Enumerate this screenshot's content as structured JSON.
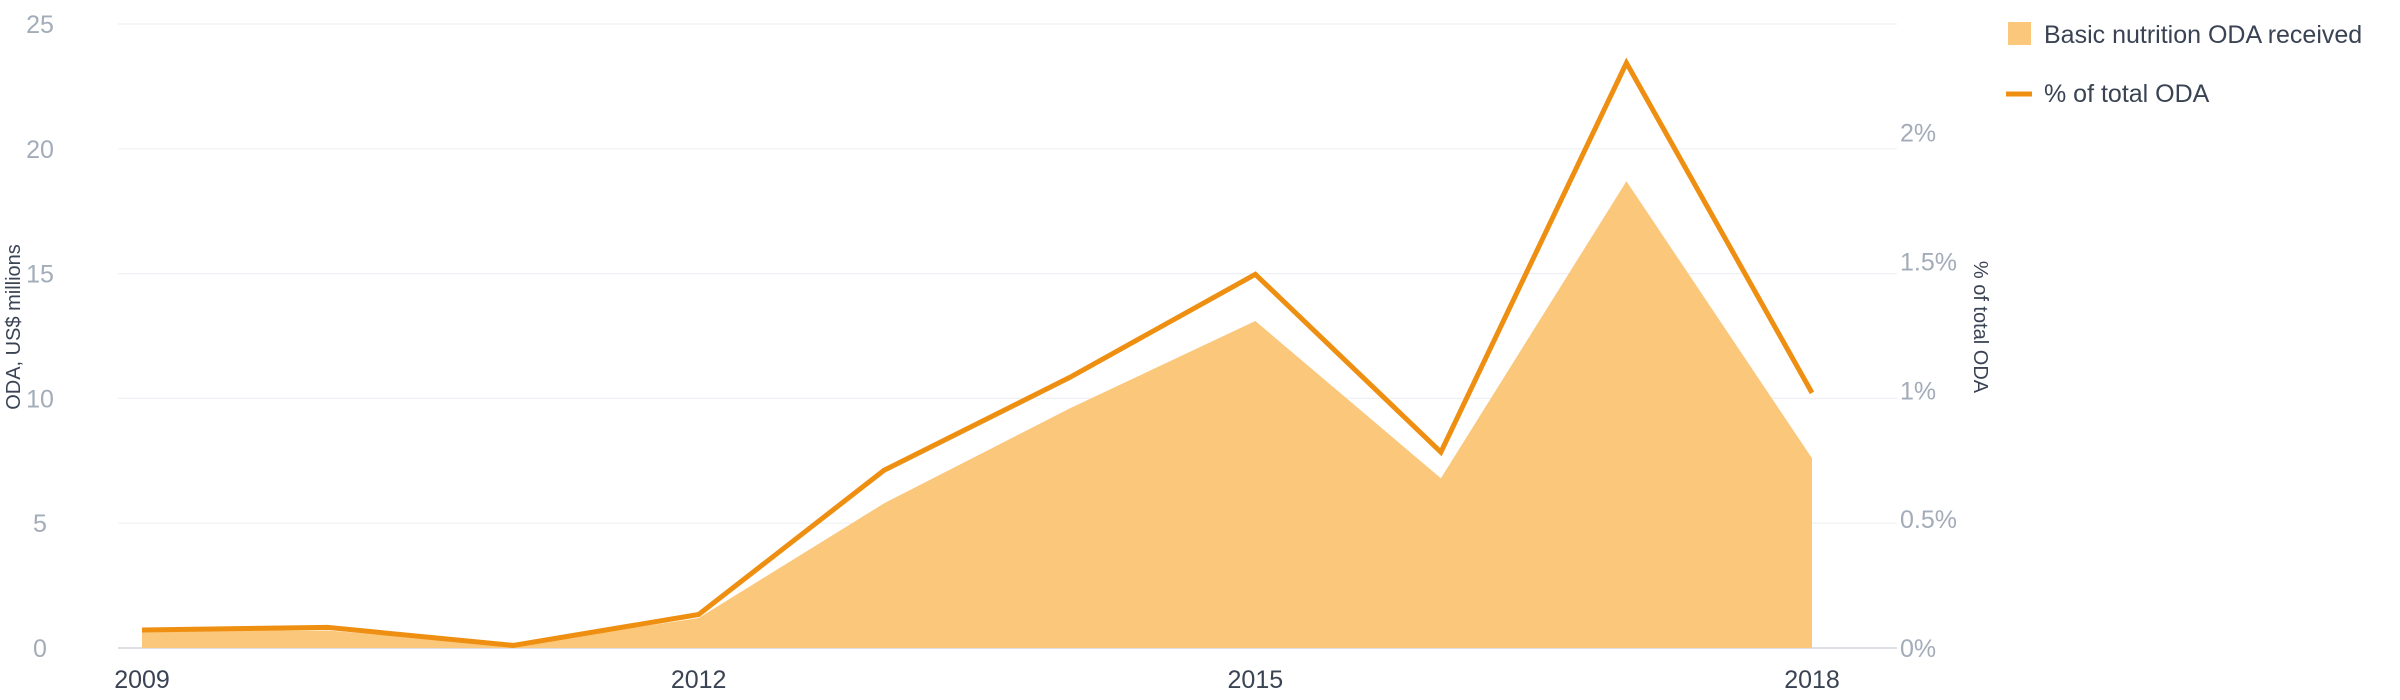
{
  "chart_data": {
    "type": "area",
    "x": [
      2009,
      2010,
      2011,
      2012,
      2013,
      2014,
      2015,
      2016,
      2017,
      2018
    ],
    "x_ticks": [
      "2009",
      "2012",
      "2015",
      "2018"
    ],
    "series": [
      {
        "name": "Basic nutrition ODA received",
        "type": "area",
        "axis": "left",
        "color": "#fbc77b",
        "values": [
          0.7,
          0.7,
          0.1,
          1.2,
          5.8,
          9.6,
          13.1,
          6.8,
          18.7,
          7.6
        ]
      },
      {
        "name": "% of total ODA",
        "type": "line",
        "axis": "right",
        "color": "#ee8f12",
        "values": [
          0.07,
          0.08,
          0.01,
          0.13,
          0.69,
          1.05,
          1.45,
          0.76,
          2.27,
          0.99
        ]
      }
    ],
    "ylabel": "ODA, US$ millions",
    "y2label": "% of total ODA",
    "ylim": [
      0,
      25
    ],
    "y_ticks": [
      "0",
      "5",
      "10",
      "15",
      "20",
      "25"
    ],
    "y2lim": [
      0,
      2.4211
    ],
    "y2_ticks": [
      "0%",
      "0.5%",
      "1%",
      "1.5%",
      "2%"
    ],
    "grid": true,
    "legend": "top-right"
  }
}
